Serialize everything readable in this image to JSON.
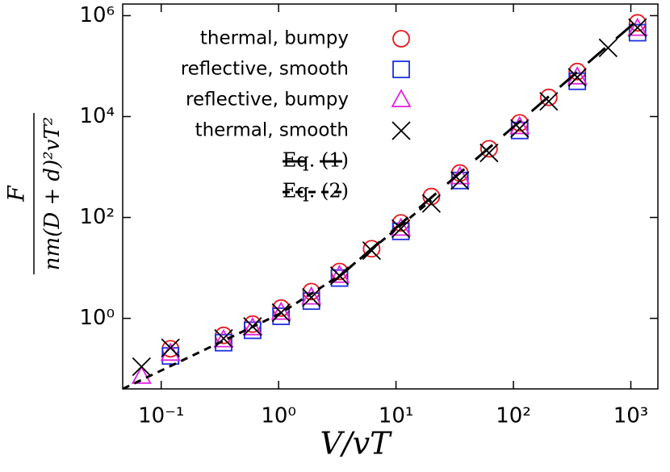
{
  "chart_data": {
    "type": "scatter",
    "x_label": "V/vT",
    "y_label": {
      "numerator": "F",
      "denominator": "nm(D + d)²vT²"
    },
    "xscale": "log",
    "yscale": "log",
    "xlim": [
      0.047,
      1700
    ],
    "ylim": [
      0.04,
      1700000
    ],
    "xticks": [
      {
        "value": 0.1,
        "label": "10⁻¹"
      },
      {
        "value": 1,
        "label": "10⁰"
      },
      {
        "value": 10,
        "label": "10¹"
      },
      {
        "value": 100,
        "label": "10²"
      },
      {
        "value": 1000,
        "label": "10³"
      }
    ],
    "yticks": [
      {
        "value": 1,
        "label": "10⁰"
      },
      {
        "value": 100,
        "label": "10²"
      },
      {
        "value": 10000,
        "label": "10⁴"
      },
      {
        "value": 1000000,
        "label": "10⁶"
      }
    ],
    "legend": "upper left",
    "series": [
      {
        "name": "thermal, bumpy",
        "color": "#e8141c",
        "marker": "circle",
        "x": [
          0.12,
          0.34,
          0.6,
          1.05,
          1.9,
          3.3,
          6.2,
          11,
          20,
          35,
          62,
          113,
          200,
          350,
          1140
        ],
        "values": [
          0.25,
          0.46,
          0.77,
          1.6,
          3.4,
          8.5,
          24,
          78,
          260,
          760,
          2300,
          7500,
          24000,
          78000,
          720000
        ]
      },
      {
        "name": "reflective, smooth",
        "color": "#1c2fe0",
        "marker": "square",
        "x": [
          0.12,
          0.34,
          0.6,
          1.05,
          1.9,
          3.3,
          11,
          35,
          113,
          350,
          1140
        ],
        "values": [
          0.18,
          0.33,
          0.58,
          1.1,
          2.2,
          6.3,
          53,
          540,
          5300,
          50000,
          460000
        ]
      },
      {
        "name": "reflective, bumpy",
        "color": "#e020e0",
        "marker": "triangle",
        "x": [
          0.068,
          0.12,
          0.34,
          0.6,
          1.05,
          1.9,
          3.3,
          11,
          35,
          113,
          350,
          1140
        ],
        "values": [
          0.07,
          0.2,
          0.37,
          0.64,
          1.3,
          2.6,
          7,
          60,
          630,
          6200,
          60000,
          550000
        ]
      },
      {
        "name": "thermal, smooth",
        "color": "#000000",
        "marker": "cross",
        "x": [
          0.068,
          0.12,
          0.34,
          0.6,
          1.05,
          1.9,
          3.3,
          6.2,
          11,
          20,
          35,
          62,
          113,
          200,
          350,
          640,
          1140
        ],
        "values": [
          0.11,
          0.26,
          0.4,
          0.69,
          1.3,
          2.6,
          7,
          22,
          60,
          190,
          540,
          1900,
          5800,
          20000,
          60000,
          230000,
          580000
        ]
      },
      {
        "name": "Eq. (1)",
        "color": "#000000",
        "line_style": "long-dash",
        "x": [
          3,
          1200
        ],
        "values": [
          5.6,
          900000
        ]
      },
      {
        "name": "Eq. (2)",
        "color": "#000000",
        "line_style": "short-dash",
        "x": [
          0.047,
          0.2,
          1,
          3.3,
          11,
          20
        ],
        "values": [
          0.04,
          0.2,
          1.2,
          7,
          70,
          220
        ]
      }
    ]
  }
}
